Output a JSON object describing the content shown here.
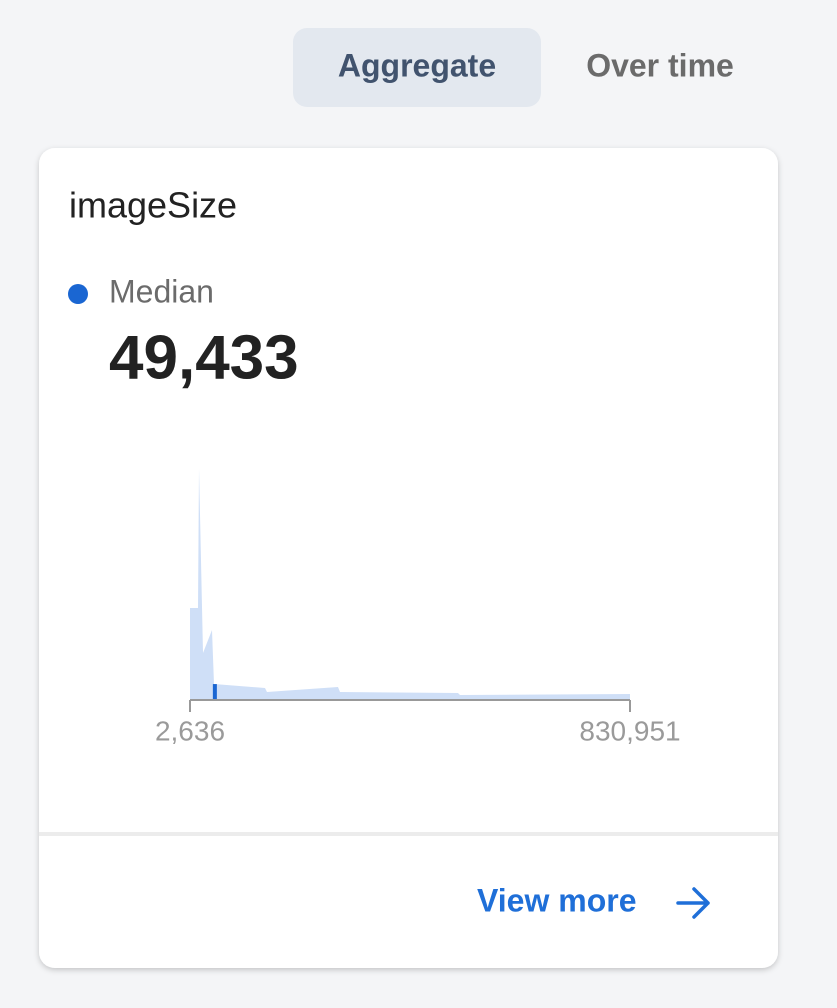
{
  "tabs": [
    "Aggregate",
    "Over time"
  ],
  "card": {
    "title": "imageSize",
    "median": {
      "label": "Median",
      "value": {
        "value": 49433,
        "label": "49,433"
      }
    },
    "chart": {
      "type": "area",
      "color": "#cfdff7",
      "median_color": "#1a66d2",
      "x": [
        2636,
        17700,
        19579,
        27109,
        44052,
        47817,
        143826,
        147591,
        281251,
        285016,
        507154,
        510919,
        830951
      ],
      "values": [
        92,
        92,
        232,
        47,
        70,
        16,
        12,
        8,
        13,
        8,
        7,
        5,
        6
      ],
      "xlim": [
        2636,
        830951
      ],
      "xticks": [
        {
          "value": 2636,
          "label": "2,636"
        },
        {
          "value": 830951,
          "label": "830,951"
        }
      ]
    },
    "link": "View more"
  }
}
